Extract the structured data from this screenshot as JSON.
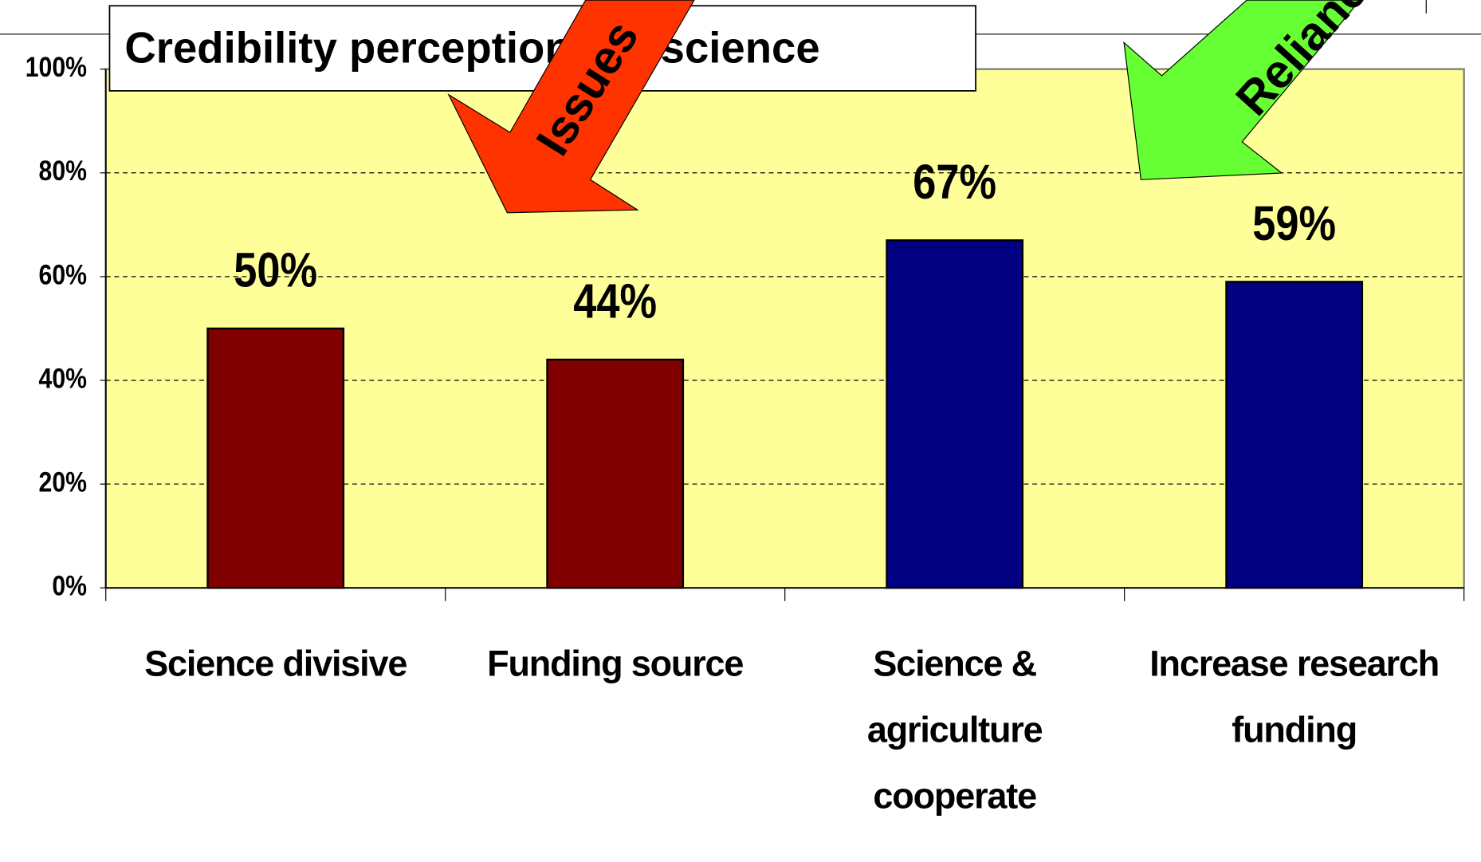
{
  "chart_data": {
    "type": "bar",
    "title": "Credibility perceptions of science",
    "categories": [
      "Science divisive",
      "Funding source",
      "Science & agriculture cooperate",
      "Increase research funding"
    ],
    "values": [
      50,
      44,
      67,
      59
    ],
    "value_labels": [
      "50%",
      "44%",
      "67%",
      "59%"
    ],
    "colors": [
      "#800000",
      "#800000",
      "#000080",
      "#000080"
    ],
    "ylim": [
      0,
      100
    ],
    "yticks": [
      {
        "value": 0,
        "label": "0%"
      },
      {
        "value": 20,
        "label": "20%"
      },
      {
        "value": 40,
        "label": "40%"
      },
      {
        "value": 60,
        "label": "60%"
      },
      {
        "value": 80,
        "label": "80%"
      },
      {
        "value": 100,
        "label": "100%"
      }
    ],
    "grid": true,
    "plot_background": "#ffff99",
    "annotations": [
      "Issues",
      "Reliance"
    ]
  }
}
